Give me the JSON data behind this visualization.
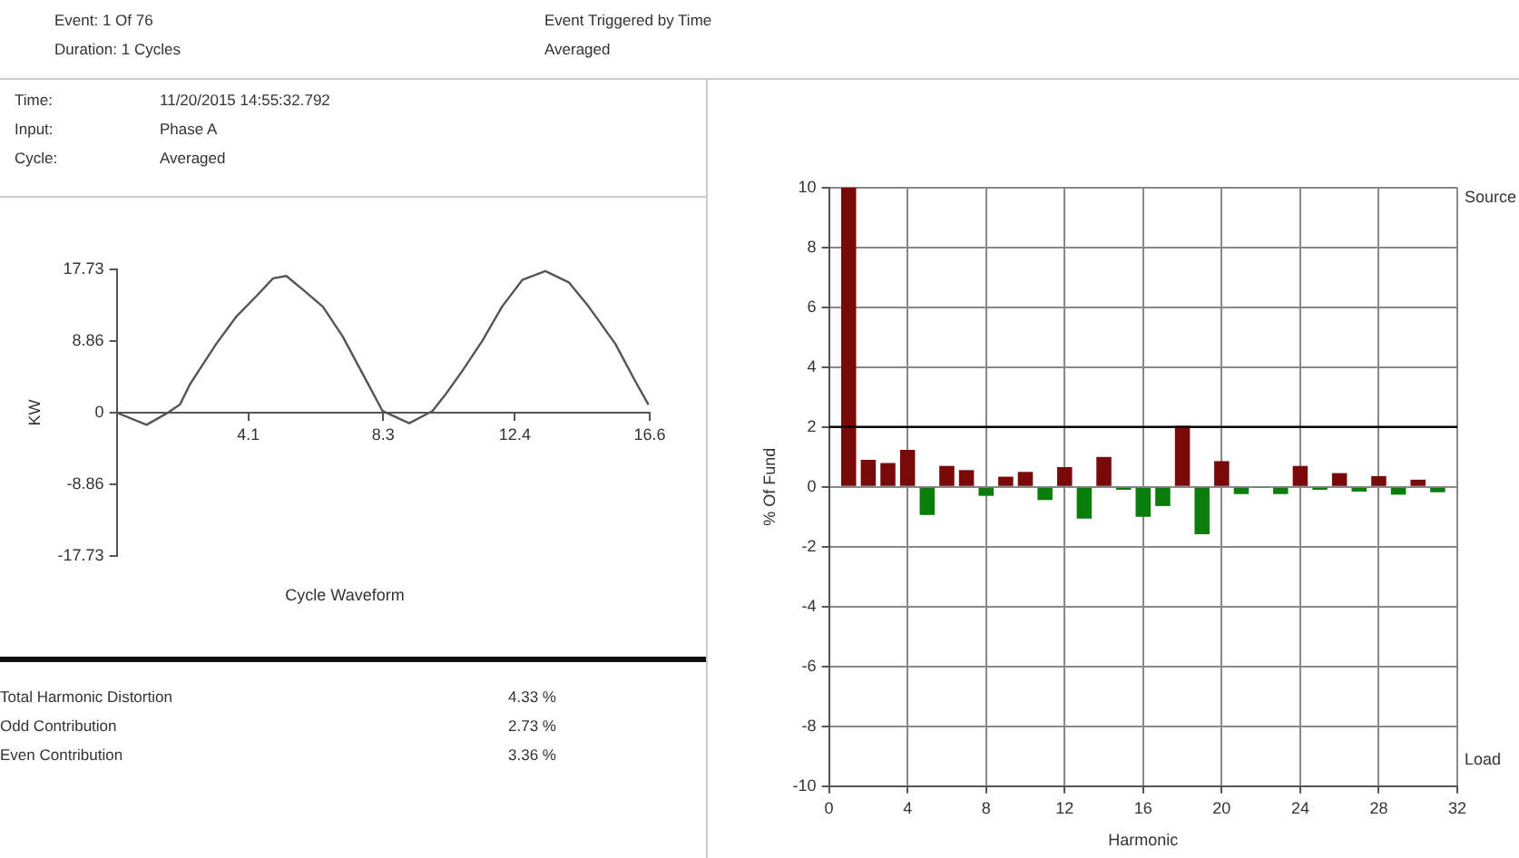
{
  "chart_data": [
    {
      "type": "other",
      "annotations": [
        "Event: 1  Of 76",
        "Event Triggered by Time",
        "Duration: 1 Cycles",
        "Averaged"
      ]
    },
    {
      "type": "other",
      "annotations": [
        "Time:",
        "11/20/2015 14:55:32.792",
        "Input:",
        "Phase A",
        "Cycle:",
        "Averaged"
      ]
    },
    {
      "type": "line",
      "xlabel": "Cycle Waveform",
      "ylabel": "KW",
      "xlim": [
        0,
        16.6
      ],
      "xticks": [
        4.1,
        8.3,
        12.4,
        16.6
      ],
      "ylim": [
        -17.73,
        17.73
      ],
      "yticks": [
        17.73,
        8.86,
        0,
        -8.86,
        -17.73
      ],
      "grid": false,
      "marker": "none",
      "line_style": "solid",
      "x": [
        0,
        0.93,
        1.55,
        1.97,
        2.28,
        2.69,
        3.1,
        3.73,
        4.35,
        4.87,
        5.28,
        5.8,
        6.42,
        7.04,
        7.66,
        8.28,
        9.11,
        9.83,
        10.25,
        10.77,
        11.39,
        12.0,
        12.63,
        13.35,
        14.08,
        14.7,
        15.53,
        16.15,
        16.56
      ],
      "series": [
        {
          "color": "#555555",
          "values": [
            0,
            -1.5,
            -0.1,
            1.0,
            3.5,
            6.0,
            8.5,
            11.9,
            14.4,
            16.6,
            16.9,
            15.2,
            13.1,
            9.4,
            4.8,
            0.2,
            -1.3,
            0.2,
            2.3,
            5.2,
            8.9,
            13.1,
            16.4,
            17.5,
            16.1,
            13.1,
            8.5,
            3.9,
            1.0
          ]
        }
      ]
    },
    {
      "type": "other",
      "annotations": [
        "Total Harmonic Distortion",
        "4.33 %",
        "Odd Contribution",
        "2.73 %",
        "Even Contribution",
        "3.36 %"
      ]
    },
    {
      "type": "bar",
      "xlabel": "Harmonic",
      "ylabel": "% Of Fund",
      "xlim": [
        0,
        32
      ],
      "xticks": [
        0,
        4,
        8,
        12,
        16,
        20,
        24,
        28,
        32
      ],
      "ylim": [
        -10,
        10
      ],
      "yticks": [
        -10,
        -8,
        -6,
        -4,
        -2,
        0,
        2,
        4,
        6,
        8,
        10
      ],
      "grid": true,
      "annotations": [
        "Source",
        "Load"
      ],
      "ref_lines": [
        {
          "axis": "y",
          "value": 2,
          "color": "#000000"
        }
      ],
      "x": [
        1,
        2,
        3,
        4,
        5,
        6,
        7,
        8,
        9,
        10,
        11,
        12,
        13,
        14,
        15,
        16,
        17,
        18,
        19,
        20,
        21,
        22,
        23,
        24,
        25,
        26,
        27,
        28,
        29,
        30,
        31
      ],
      "values": [
        10,
        0.9,
        0.8,
        1.24,
        -0.94,
        0.7,
        0.56,
        -0.3,
        0.34,
        0.5,
        -0.44,
        0.66,
        -1.06,
        1.0,
        -0.1,
        -1.0,
        -0.64,
        2.04,
        -1.58,
        0.86,
        -0.24,
        -0.02,
        -0.24,
        0.7,
        -0.1,
        0.46,
        -0.16,
        0.36,
        -0.26,
        0.24,
        -0.18
      ],
      "colors": [
        "#7a0a0a",
        "#7a0a0a",
        "#7a0a0a",
        "#7a0a0a",
        "#0a7d0a",
        "#7a0a0a",
        "#7a0a0a",
        "#0a7d0a",
        "#7a0a0a",
        "#7a0a0a",
        "#0a7d0a",
        "#7a0a0a",
        "#0a7d0a",
        "#7a0a0a",
        "#0a7d0a",
        "#0a7d0a",
        "#0a7d0a",
        "#7a0a0a",
        "#0a7d0a",
        "#7a0a0a",
        "#0a7d0a",
        "#0a7d0a",
        "#0a7d0a",
        "#7a0a0a",
        "#0a7d0a",
        "#7a0a0a",
        "#0a7d0a",
        "#7a0a0a",
        "#0a7d0a",
        "#7a0a0a",
        "#0a7d0a"
      ]
    }
  ]
}
